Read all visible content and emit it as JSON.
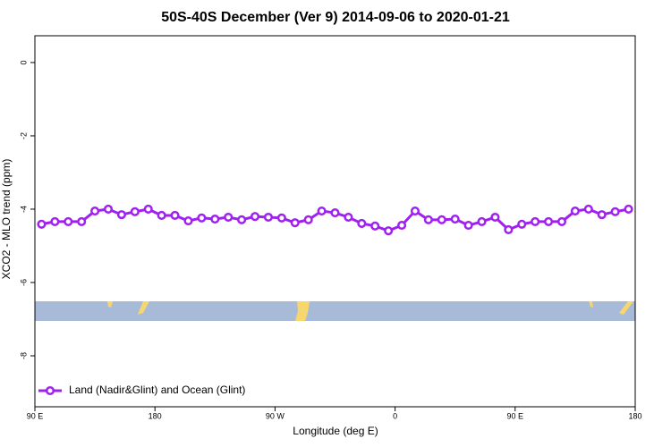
{
  "chart_data": {
    "type": "line",
    "title": "50S-40S December (Ver 9)   2014-09-06 to 2020-01-21",
    "x_label": "Longitude (deg E)",
    "y_label": "XCO2 - MLO trend (ppm)",
    "x": [
      95,
      105,
      115,
      125,
      135,
      145,
      155,
      165,
      175,
      185,
      195,
      205,
      215,
      225,
      235,
      245,
      255,
      265,
      275,
      285,
      295,
      305,
      315,
      325,
      335,
      345,
      355,
      365,
      375,
      385,
      395,
      405,
      415,
      425,
      435,
      445,
      455,
      465,
      475,
      485,
      495,
      505,
      515,
      525,
      535
    ],
    "series": [
      {
        "name": "Land (Nadir&Glint) and Ocean (Glint)",
        "color": "#a020f0",
        "values": [
          -4.41,
          -4.34,
          -4.34,
          -4.34,
          -4.05,
          -4.0,
          -4.15,
          -4.07,
          -4.0,
          -4.17,
          -4.17,
          -4.32,
          -4.24,
          -4.27,
          -4.22,
          -4.29,
          -4.2,
          -4.22,
          -4.24,
          -4.37,
          -4.29,
          -4.05,
          -4.1,
          -4.22,
          -4.39,
          -4.46,
          -4.59,
          -4.44,
          -4.05,
          -4.29,
          -4.29,
          -4.27,
          -4.44,
          -4.34,
          -4.22,
          -4.56,
          -4.41,
          -4.34,
          -4.34,
          -4.34,
          -4.05,
          -4.0,
          -4.15,
          -4.07,
          -4.0
        ]
      }
    ],
    "xlim": [
      90,
      540
    ],
    "xticks": [
      {
        "value": 90,
        "label": "90 E"
      },
      180,
      {
        "value": 270,
        "label": "90 W"
      },
      {
        "value": 360,
        "label": "0"
      },
      {
        "value": 450,
        "label": "90 E"
      },
      {
        "value": 540,
        "label": "180"
      }
    ],
    "ylim": [
      -9.39,
      0.73
    ],
    "yticks": [
      0,
      -2,
      -4,
      -6,
      -8
    ],
    "legend": "bottom-left"
  }
}
